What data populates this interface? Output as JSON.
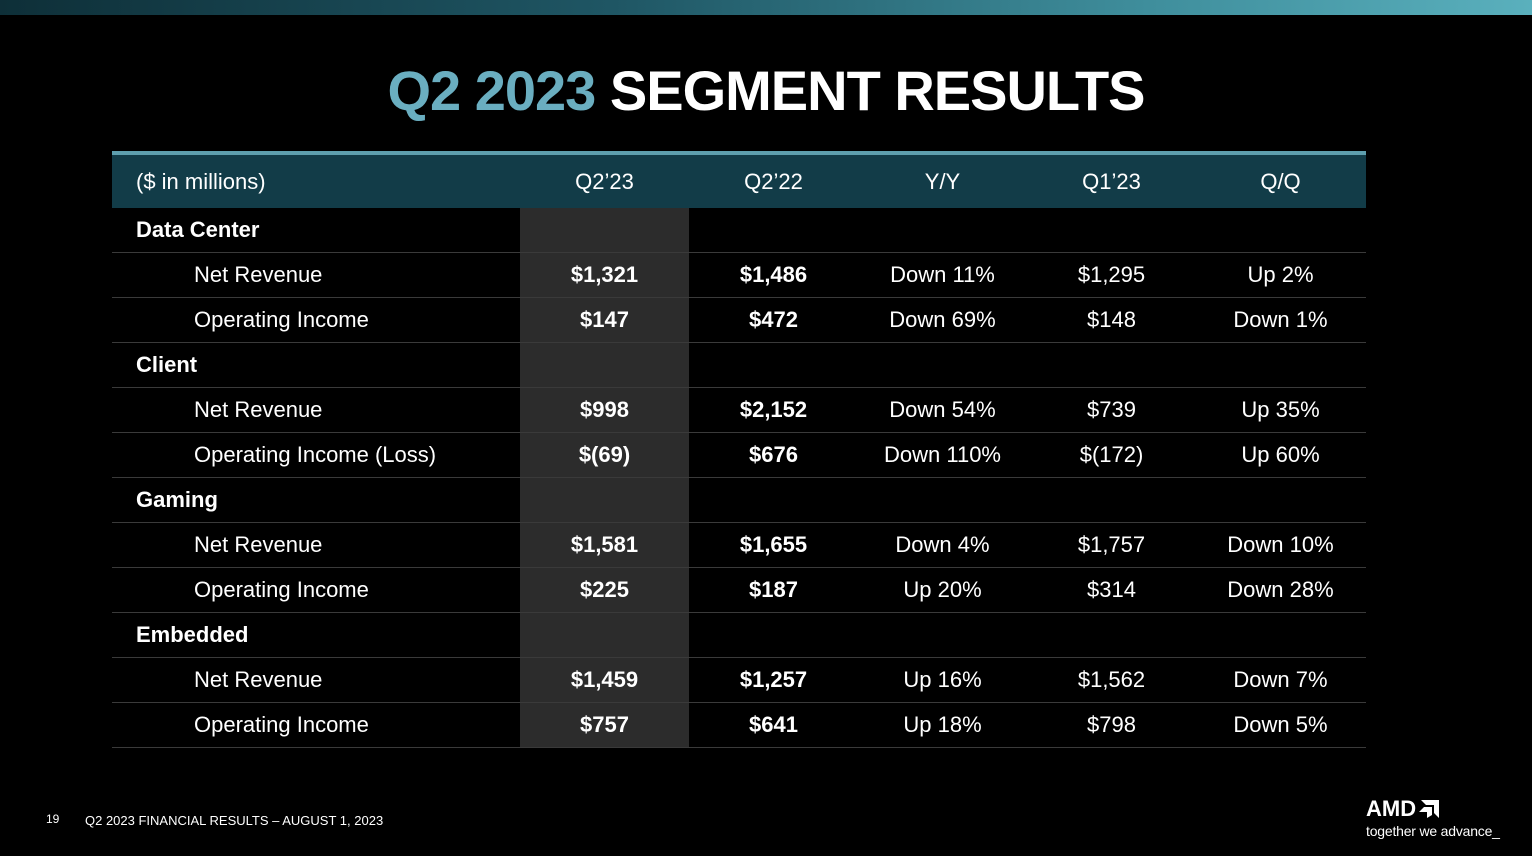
{
  "slide": {
    "title_accent": "Q2 2023",
    "title_rest": "SEGMENT RESULTS",
    "page_number": "19",
    "footer": "Q2 2023 FINANCIAL RESULTS – AUGUST 1, 2023",
    "logo_text": "AMD",
    "tagline": "together we advance_"
  },
  "table": {
    "headers": [
      "($ in millions)",
      "Q2’23",
      "Q2’22",
      "Y/Y",
      "Q1’23",
      "Q/Q"
    ],
    "segments": [
      {
        "name": "Data Center",
        "rows": [
          {
            "label": "Net Revenue",
            "values": [
              "$1,321",
              "$1,486",
              "Down 11%",
              "$1,295",
              "Up 2%"
            ]
          },
          {
            "label": "Operating Income",
            "values": [
              "$147",
              "$472",
              "Down 69%",
              "$148",
              "Down 1%"
            ]
          }
        ]
      },
      {
        "name": "Client",
        "rows": [
          {
            "label": "Net Revenue",
            "values": [
              "$998",
              "$2,152",
              "Down 54%",
              "$739",
              "Up 35%"
            ]
          },
          {
            "label": "Operating Income (Loss)",
            "values": [
              "$(69)",
              "$676",
              "Down 110%",
              "$(172)",
              "Up 60%"
            ]
          }
        ]
      },
      {
        "name": "Gaming",
        "rows": [
          {
            "label": "Net Revenue",
            "values": [
              "$1,581",
              "$1,655",
              "Down 4%",
              "$1,757",
              "Down 10%"
            ]
          },
          {
            "label": "Operating Income",
            "values": [
              "$225",
              "$187",
              "Up 20%",
              "$314",
              "Down 28%"
            ]
          }
        ]
      },
      {
        "name": "Embedded",
        "rows": [
          {
            "label": "Net Revenue",
            "values": [
              "$1,459",
              "$1,257",
              "Up 16%",
              "$1,562",
              "Down 7%"
            ]
          },
          {
            "label": "Operating Income",
            "values": [
              "$757",
              "$641",
              "Up 18%",
              "$798",
              "Down 5%"
            ]
          }
        ]
      }
    ]
  },
  "colors": {
    "accent": "#6aaec0",
    "header_bg": "#123c48",
    "highlight_column": "#2c2c2c"
  }
}
